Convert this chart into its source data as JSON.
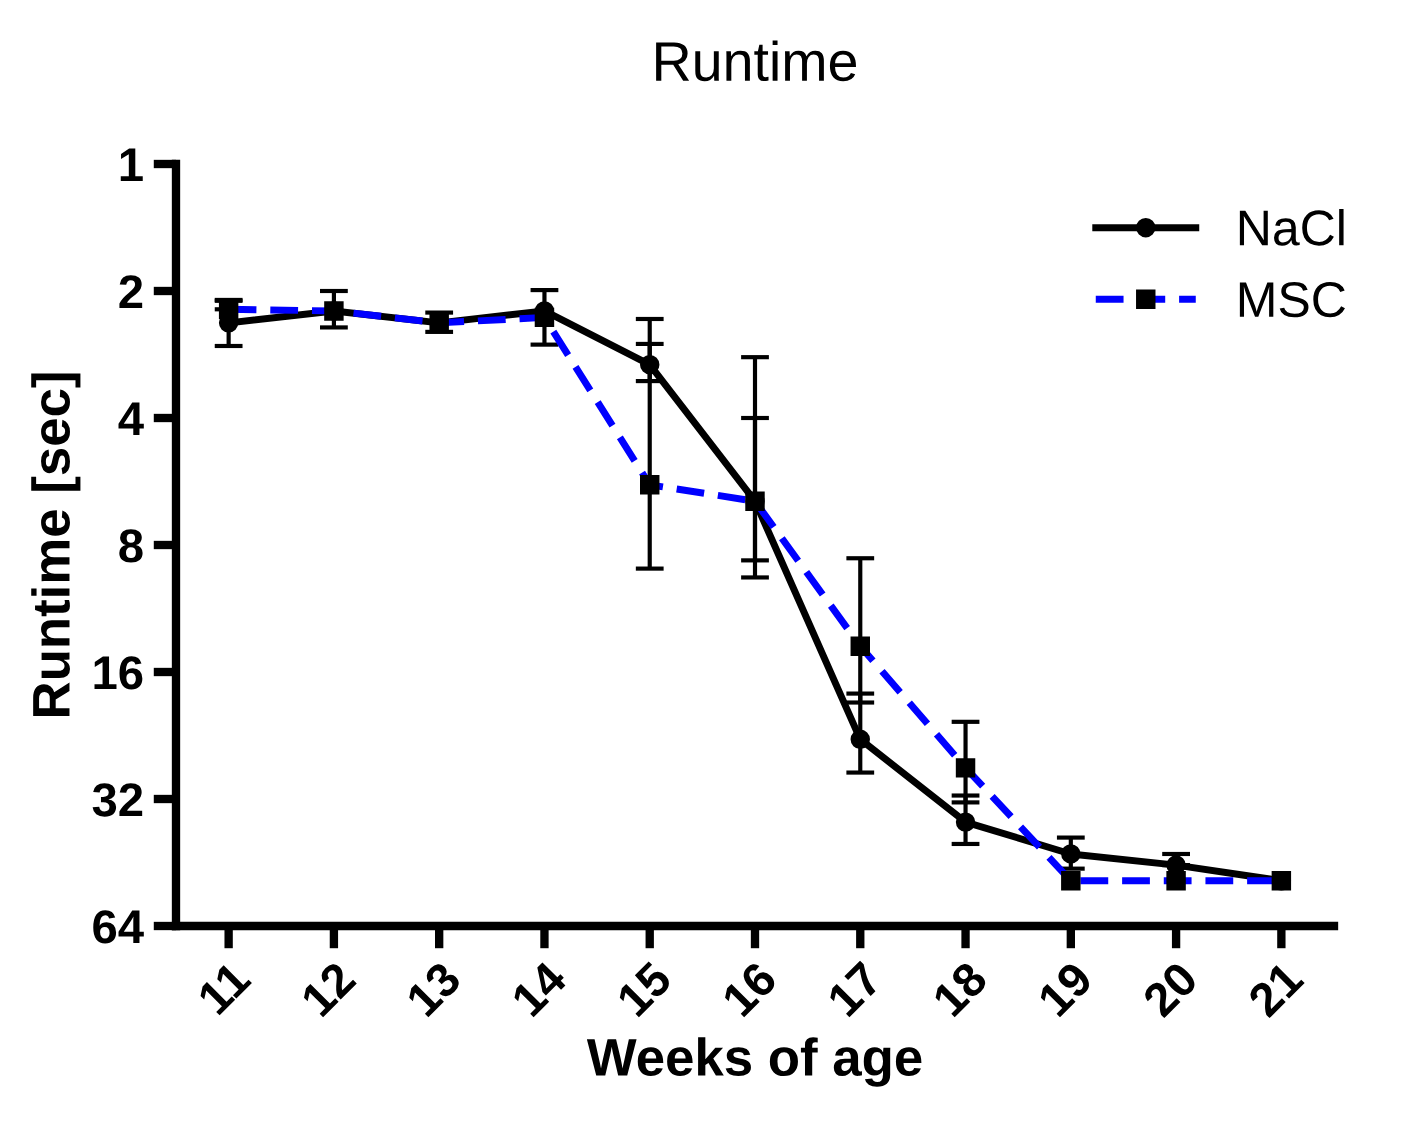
{
  "chart_data": {
    "type": "line",
    "title": "Runtime",
    "xlabel": "Weeks of age",
    "ylabel": "Runtime [sec]",
    "categories": [
      "11",
      "12",
      "13",
      "14",
      "15",
      "16",
      "17",
      "18",
      "19",
      "20",
      "21"
    ],
    "log": "y",
    "ylim": [
      64,
      1
    ],
    "yticks": [
      1,
      2,
      4,
      8,
      16,
      32,
      64
    ],
    "grid": false,
    "legend": "top right",
    "series": [
      {
        "name": "NaCl",
        "color": "#000000",
        "marker": "circle",
        "line_style": "solid",
        "values": [
          2.38,
          2.23,
          2.38,
          2.23,
          2.99,
          6.3,
          23.1,
          36.3,
          43.2,
          45.9,
          50
        ],
        "errors": [
          [
            2.1,
            2.7
          ],
          [
            2.0,
            2.44
          ],
          [
            2.25,
            2.5
          ],
          [
            1.99,
            2.68
          ],
          [
            2.33,
            3.27
          ],
          [
            2.87,
            9.55
          ],
          [
            18.0,
            27.7
          ],
          [
            31.4,
            40.9
          ],
          [
            39.5,
            46.8
          ],
          [
            43.2,
            45.9
          ],
          null
        ]
      },
      {
        "name": "MSC",
        "color": "#0000ff",
        "marker": "square",
        "line_style": "dashed",
        "values": [
          2.21,
          2.23,
          2.38,
          2.31,
          5.76,
          6.3,
          13.9,
          27.0,
          50,
          50,
          50
        ],
        "errors": [
          [
            2.11,
            2.21
          ],
          null,
          null,
          null,
          [
            2.67,
            9.1
          ],
          [
            4.0,
            8.7
          ],
          [
            8.6,
            18.9
          ],
          [
            21.0,
            32.6
          ],
          null,
          null,
          null
        ]
      }
    ]
  }
}
